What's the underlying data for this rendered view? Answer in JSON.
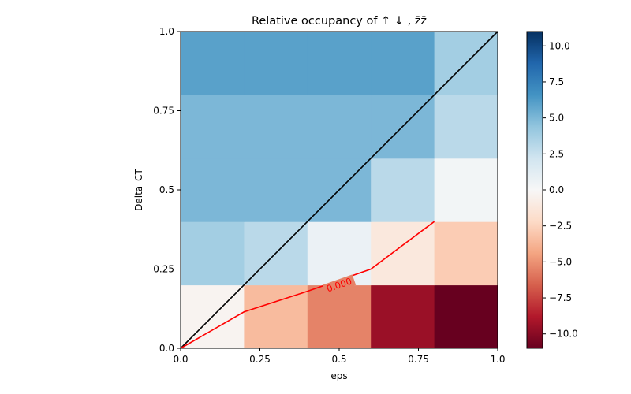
{
  "chart_data": {
    "type": "heatmap",
    "title": "Relative occupancy of  ↑ ↓ , z̄z̄",
    "xlabel": "eps",
    "ylabel": "Delta_CT",
    "xlim": [
      0,
      1
    ],
    "ylim": [
      0,
      1
    ],
    "x_edges": [
      0,
      0.2,
      0.4,
      0.6,
      0.8,
      1.0
    ],
    "y_edges": [
      0,
      0.2,
      0.4,
      0.6,
      0.8,
      1.0
    ],
    "x_ticks": [
      0,
      0.25,
      0.5,
      0.75,
      1.0
    ],
    "x_tick_labels": [
      "0.0",
      "0.25",
      "0.5",
      "0.75",
      "1.0"
    ],
    "y_ticks": [
      0,
      0.25,
      0.5,
      0.75,
      1.0
    ],
    "y_tick_labels": [
      "0.0",
      "0.25",
      "0.5",
      "0.75",
      "1.0"
    ],
    "values": [
      [
        -0.3,
        -3.5,
        -5.5,
        -9.5,
        -11.0
      ],
      [
        3.8,
        3.0,
        0.7,
        -1.2,
        -2.8
      ],
      [
        5.0,
        5.0,
        5.0,
        3.0,
        0.3
      ],
      [
        5.0,
        5.0,
        5.0,
        5.0,
        3.0
      ],
      [
        6.0,
        6.0,
        6.0,
        6.0,
        3.8
      ]
    ],
    "colorbar": {
      "vmin": -11,
      "vmax": 11,
      "ticks": [
        10.0,
        7.5,
        5.0,
        2.5,
        0.0,
        -2.5,
        -5.0,
        -7.5,
        -10.0
      ],
      "tick_labels": [
        "10.0",
        "7.5",
        "5.0",
        "2.5",
        "0.0",
        "−2.5",
        "−5.0",
        "−7.5",
        "−10.0"
      ],
      "colormap": "RdBu"
    },
    "diagonal_line": {
      "x": [
        0,
        1
      ],
      "y": [
        0,
        1
      ],
      "color": "#000000"
    },
    "contour": {
      "level_label": "0.000",
      "color": "#ff0000",
      "x": [
        0,
        0.2,
        0.4,
        0.6,
        0.8
      ],
      "y": [
        0,
        0.115,
        0.18,
        0.25,
        0.4
      ]
    },
    "grid": false
  }
}
